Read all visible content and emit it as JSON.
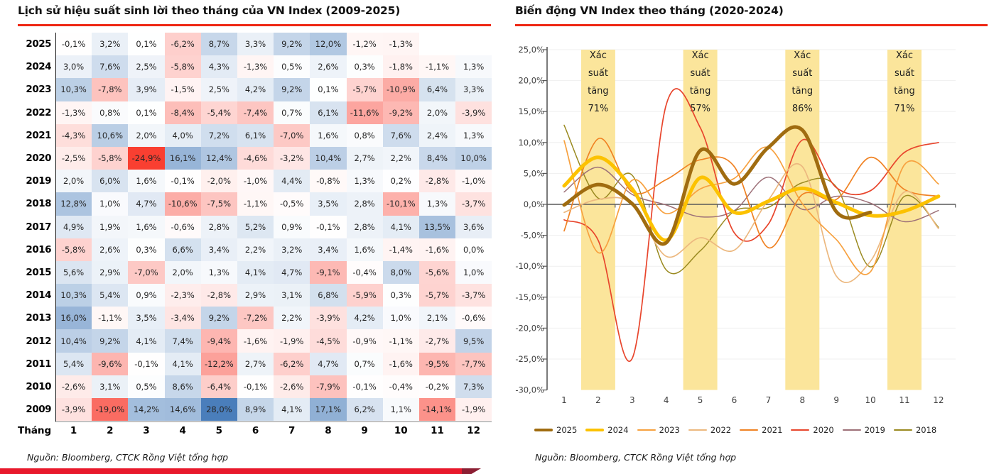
{
  "left_panel": {
    "title": "Lịch sử hiệu suất sinh lời theo tháng của VN Index (2009-2025)",
    "row_axis_label": "Tháng",
    "source": "Nguồn:  Bloomberg, CTCK Rồng Việt tổng hợp"
  },
  "right_panel": {
    "title": "Biến động VN Index theo tháng (2020-2024)",
    "source": "Nguồn:  Bloomberg, CTCK Rồng Việt tổng hợp"
  },
  "colors": {
    "accent_red": "#EE2713",
    "banner_red": "#E8192C",
    "banner_red_dark": "#8C1F33",
    "heatmap_positive_max": "#4A7EBB",
    "heatmap_negative_max": "#F93E30",
    "band_fill": "#FBE59B",
    "axis": "#595959",
    "gridline": "#EFEFEF",
    "tick_label": "#404040"
  },
  "chart_data": [
    {
      "type": "heatmap",
      "title": "Lịch sử hiệu suất sinh lời theo tháng của VN Index (2009-2025)",
      "unit": "%",
      "decimal_separator": ",",
      "columns": [
        "1",
        "2",
        "3",
        "4",
        "5",
        "6",
        "7",
        "8",
        "9",
        "10",
        "11",
        "12"
      ],
      "rows": [
        {
          "year": "2025",
          "values": [
            -0.1,
            3.2,
            0.1,
            -6.2,
            8.7,
            3.3,
            9.2,
            12.0,
            -1.2,
            -1.3,
            null,
            null
          ]
        },
        {
          "year": "2024",
          "values": [
            3.0,
            7.6,
            2.5,
            -5.8,
            4.3,
            -1.3,
            0.5,
            2.6,
            0.3,
            -1.8,
            -1.1,
            1.3
          ]
        },
        {
          "year": "2023",
          "values": [
            10.3,
            -7.8,
            3.9,
            -1.5,
            2.5,
            4.2,
            9.2,
            0.1,
            -5.7,
            -10.9,
            6.4,
            3.3
          ]
        },
        {
          "year": "2022",
          "values": [
            -1.3,
            0.8,
            0.1,
            -8.4,
            -5.4,
            -7.4,
            0.7,
            6.1,
            -11.6,
            -9.2,
            2.0,
            -3.9
          ]
        },
        {
          "year": "2021",
          "values": [
            -4.3,
            10.6,
            2.0,
            4.0,
            7.2,
            6.1,
            -7.0,
            1.6,
            0.8,
            7.6,
            2.4,
            1.3
          ]
        },
        {
          "year": "2020",
          "values": [
            -2.5,
            -5.8,
            -24.9,
            16.1,
            12.4,
            -4.6,
            -3.2,
            10.4,
            2.7,
            2.2,
            8.4,
            10.0
          ]
        },
        {
          "year": "2019",
          "values": [
            2.0,
            6.0,
            1.6,
            -0.1,
            -2.0,
            -1.0,
            4.4,
            -0.8,
            1.3,
            0.2,
            -2.8,
            -1.0
          ]
        },
        {
          "year": "2018",
          "values": [
            12.8,
            1.0,
            4.7,
            -10.6,
            -7.5,
            -1.1,
            -0.5,
            3.5,
            2.8,
            -10.1,
            1.3,
            -3.7
          ]
        },
        {
          "year": "2017",
          "values": [
            4.9,
            1.9,
            1.6,
            -0.6,
            2.8,
            5.2,
            0.9,
            -0.1,
            2.8,
            4.1,
            13.5,
            3.6
          ]
        },
        {
          "year": "2016",
          "values": [
            -5.8,
            2.6,
            0.3,
            6.6,
            3.4,
            2.2,
            3.2,
            3.4,
            1.6,
            -1.4,
            -1.6,
            0.0
          ]
        },
        {
          "year": "2015",
          "values": [
            5.6,
            2.9,
            -7.0,
            2.0,
            1.3,
            4.1,
            4.7,
            -9.1,
            -0.4,
            8.0,
            -5.6,
            1.0
          ]
        },
        {
          "year": "2014",
          "values": [
            10.3,
            5.4,
            0.9,
            -2.3,
            -2.8,
            2.9,
            3.1,
            6.8,
            -5.9,
            0.3,
            -5.7,
            -3.7
          ]
        },
        {
          "year": "2013",
          "values": [
            16.0,
            -1.1,
            3.5,
            -3.4,
            9.2,
            -7.2,
            2.2,
            -3.9,
            4.2,
            1.0,
            2.1,
            -0.6
          ]
        },
        {
          "year": "2012",
          "values": [
            10.4,
            9.2,
            4.1,
            7.4,
            -9.4,
            -1.6,
            -1.9,
            -4.5,
            -0.9,
            -1.1,
            -2.7,
            9.5
          ]
        },
        {
          "year": "2011",
          "values": [
            5.4,
            -9.6,
            -0.1,
            4.1,
            -12.2,
            2.7,
            -6.2,
            4.7,
            0.7,
            -1.6,
            -9.5,
            -7.7
          ]
        },
        {
          "year": "2010",
          "values": [
            -2.6,
            3.1,
            0.5,
            8.6,
            -6.4,
            -0.1,
            -2.6,
            -7.9,
            -0.1,
            -0.4,
            -0.2,
            7.3
          ]
        },
        {
          "year": "2009",
          "values": [
            -3.9,
            -19.0,
            14.2,
            14.6,
            28.0,
            8.9,
            4.1,
            17.1,
            6.2,
            1.1,
            -14.1,
            -1.9
          ]
        }
      ],
      "color_scale": {
        "negative_limit": -25,
        "positive_limit": 28,
        "midpoint_color": "#FFFFFF"
      }
    },
    {
      "type": "line",
      "title": "Biến động VN Index theo tháng (2020-2024)",
      "x": [
        1,
        2,
        3,
        4,
        5,
        6,
        7,
        8,
        9,
        10,
        11,
        12
      ],
      "xlabel": "",
      "ylabel": "",
      "ylim": [
        -30,
        25
      ],
      "ytick_step": 5,
      "ytick_labels": [
        "25,0%",
        "20,0%",
        "15,0%",
        "10,0%",
        "5,0%",
        "0,0%",
        "-5,0%",
        "-10,0%",
        "-15,0%",
        "-20,0%",
        "-25,0%",
        "-30,0%"
      ],
      "grid": true,
      "legend_position": "bottom",
      "highlight_bands": [
        {
          "month": 2,
          "label": "Xác suất tăng 71%",
          "label_lines": [
            "Xác",
            "suất",
            "tăng",
            "71%"
          ]
        },
        {
          "month": 5,
          "label": "Xác suất tăng 57%",
          "label_lines": [
            "Xác",
            "suất",
            "tăng",
            "57%"
          ]
        },
        {
          "month": 8,
          "label": "Xác suất tăng 86%",
          "label_lines": [
            "Xác",
            "suất",
            "tăng",
            "86%"
          ]
        },
        {
          "month": 11,
          "label": "Xác suất tăng 71%",
          "label_lines": [
            "Xác",
            "suất",
            "tăng",
            "71%"
          ]
        }
      ],
      "legend_order": [
        "2025",
        "2024",
        "2023",
        "2022",
        "2021",
        "2020",
        "2019",
        "2018"
      ],
      "series": [
        {
          "name": "2025",
          "color": "#A06C10",
          "width": 5,
          "values": [
            -0.1,
            3.2,
            0.1,
            -6.2,
            8.7,
            3.3,
            9.2,
            12.0,
            -1.2,
            -1.3
          ]
        },
        {
          "name": "2024",
          "color": "#FCC200",
          "width": 5,
          "values": [
            3.0,
            7.6,
            2.5,
            -5.8,
            4.3,
            -1.3,
            0.5,
            2.6,
            0.3,
            -1.8,
            -1.1,
            1.3
          ]
        },
        {
          "name": "2023",
          "color": "#F7A13F",
          "width": 1.7,
          "values": [
            10.3,
            -7.8,
            3.9,
            -1.5,
            2.5,
            4.2,
            9.2,
            0.1,
            -5.7,
            -10.9,
            6.4,
            3.3
          ]
        },
        {
          "name": "2022",
          "color": "#ECB87F",
          "width": 1.7,
          "values": [
            -1.3,
            0.8,
            0.1,
            -8.4,
            -5.4,
            -7.4,
            0.7,
            6.1,
            -11.6,
            -9.2,
            2.0,
            -3.9
          ]
        },
        {
          "name": "2021",
          "color": "#F08223",
          "width": 1.7,
          "values": [
            -4.3,
            10.6,
            2.0,
            4.0,
            7.2,
            6.1,
            -7.0,
            1.6,
            0.8,
            7.6,
            2.4,
            1.3
          ]
        },
        {
          "name": "2020",
          "color": "#E8452C",
          "width": 1.7,
          "values": [
            -2.5,
            -5.8,
            -24.9,
            16.1,
            12.4,
            -4.6,
            -3.2,
            10.4,
            2.7,
            2.2,
            8.4,
            10.0
          ]
        },
        {
          "name": "2019",
          "color": "#9D7078",
          "width": 1.5,
          "values": [
            2.0,
            6.0,
            1.6,
            -0.1,
            -2.0,
            -1.0,
            4.4,
            -0.8,
            1.3,
            0.2,
            -2.8,
            -1.0
          ]
        },
        {
          "name": "2018",
          "color": "#9A8A20",
          "width": 1.5,
          "values": [
            12.8,
            1.0,
            4.7,
            -10.6,
            -7.5,
            -1.1,
            -0.5,
            3.5,
            2.8,
            -10.1,
            1.3,
            -3.7
          ]
        }
      ]
    }
  ]
}
